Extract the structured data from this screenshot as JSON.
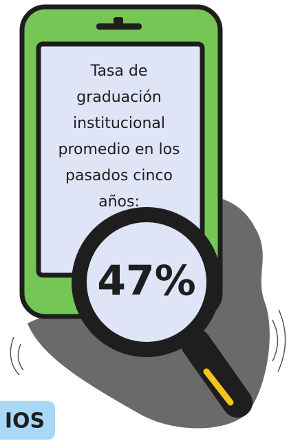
{
  "card": {
    "text_lines": [
      "Tasa de",
      "graduación",
      "institucional",
      "promedio en los",
      "pasados cinco",
      "años:"
    ],
    "value": "47%",
    "label": "IOS"
  }
}
